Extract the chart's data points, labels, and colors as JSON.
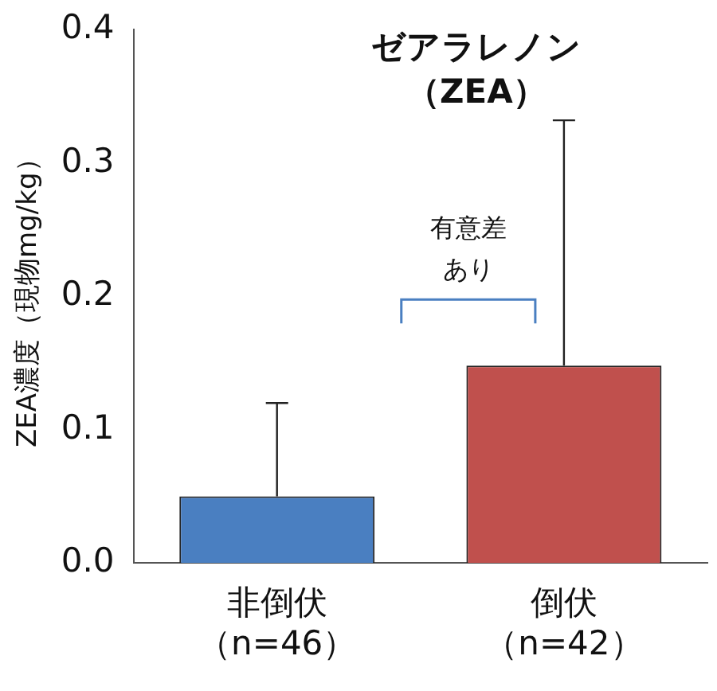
{
  "chart_data": {
    "type": "bar",
    "title": "ゼアラレノン（ZEA）",
    "ylabel": "ZEA濃度（現物mg/kg）",
    "categories": [
      "非倒伏（n=46）",
      "倒伏（n=42）"
    ],
    "values": [
      0.05,
      0.148
    ],
    "colors": [
      "#4a7fc1",
      "#c0504d"
    ],
    "errors": [
      [
        0.05,
        0.12
      ],
      [
        0.148,
        0.332
      ]
    ],
    "ylim": [
      0,
      0.4
    ],
    "yticks": [
      {
        "value": 0,
        "label": "0.0"
      },
      {
        "value": 0.1,
        "label": "0.1"
      },
      {
        "value": 0.2,
        "label": "0.2"
      },
      {
        "value": 0.3,
        "label": "0.3"
      },
      {
        "value": 0.4,
        "label": "0.4"
      }
    ],
    "annotations": [
      "有意差あり"
    ],
    "grid": false,
    "legend": false
  }
}
